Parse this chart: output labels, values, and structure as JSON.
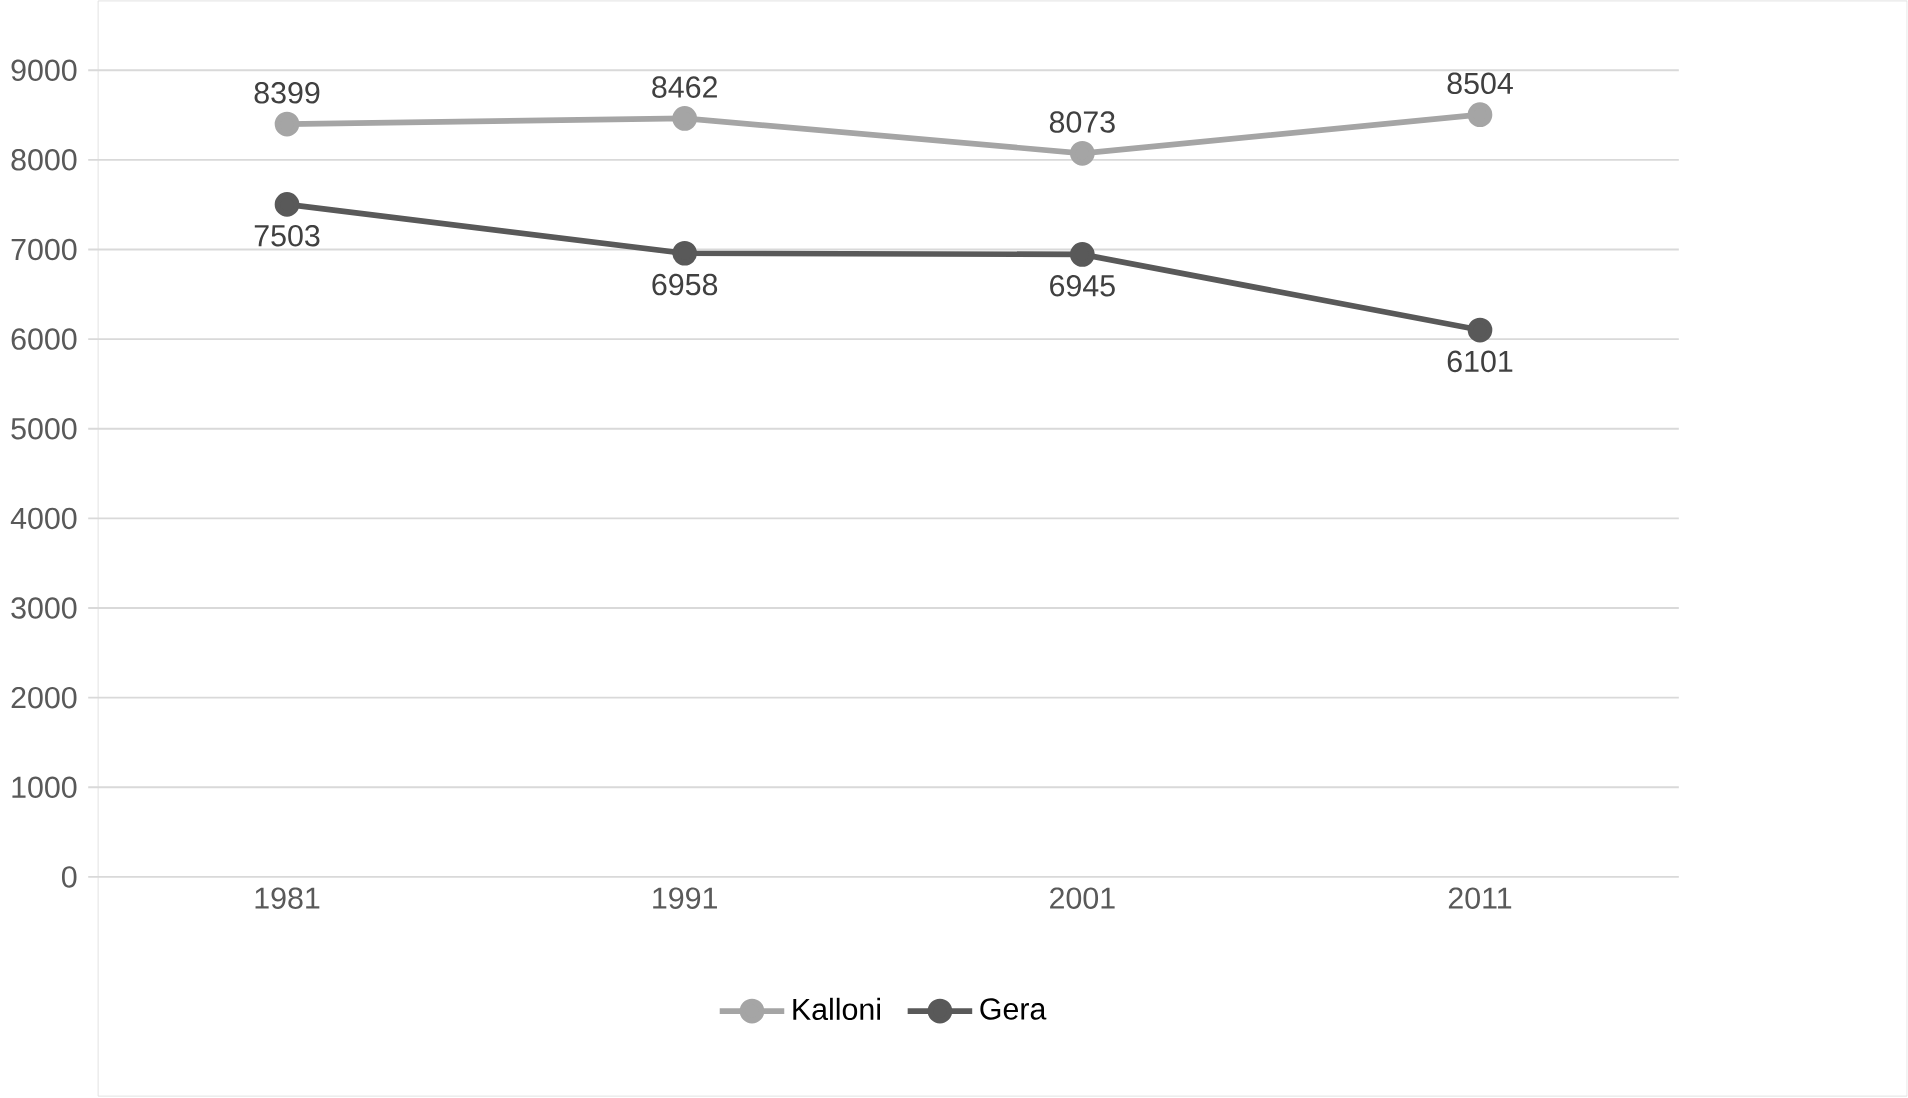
{
  "chart_data": {
    "type": "line",
    "categories": [
      "1981",
      "1991",
      "2001",
      "2011"
    ],
    "series": [
      {
        "name": "Kalloni",
        "color": "#a5a5a5",
        "values": [
          8399,
          8462,
          8073,
          8504
        ]
      },
      {
        "name": "Gera",
        "color": "#595959",
        "values": [
          7503,
          6958,
          6945,
          6101
        ]
      }
    ],
    "ylim": [
      0,
      9000
    ],
    "yticks": [
      0,
      1000,
      2000,
      3000,
      4000,
      5000,
      6000,
      7000,
      8000,
      9000
    ],
    "grid": "y",
    "legend": "bottom",
    "marker": "circle",
    "line_style": "solid",
    "data_labels": true
  }
}
